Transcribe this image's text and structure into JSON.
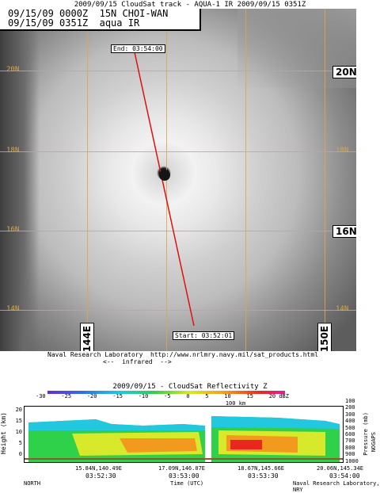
{
  "header": {
    "title": "2009/09/15 CloudSat track - AQUA-1 IR  2009/09/15 0351Z"
  },
  "banner": {
    "line1": "09/15/09 0000Z  15N CHOI-WAN",
    "line2": "09/15/09 0351Z  aqua IR"
  },
  "map": {
    "lat_labels_left": [
      "20N",
      "18N",
      "16N",
      "14N"
    ],
    "lat_badges_right": [
      "20N",
      "16N"
    ],
    "lat_labels_right": [
      "18N",
      "14N"
    ],
    "lon_badges": [
      "144E",
      "150E"
    ],
    "track_end": "End: 03:54:00",
    "track_start": "Start: 03:52:01"
  },
  "footer": {
    "credit": "Naval Research Laboratory  http://www.nrlmry.navy.mil/sat_products.html",
    "band": "<--  infrared  -->"
  },
  "profile": {
    "title": "2009/09/15 - CloudSat Reflectivity Z",
    "colorbar_ticks": [
      "-30",
      "-25",
      "-20",
      "-15",
      "-10",
      "-5",
      "0",
      "5",
      "10",
      "15",
      "20 dBZ"
    ],
    "scale_label": "100 km",
    "ylabel_left": "Height (km)",
    "yticks_left": [
      "20",
      "15",
      "10",
      "5",
      "0"
    ],
    "ylabel_right": "Pressure (mb)",
    "yticks_right": [
      "100",
      "200",
      "300",
      "400",
      "500",
      "600",
      "700",
      "800",
      "900",
      "1000"
    ],
    "right_side_label": "NOGAPS",
    "x_coords": [
      "15.84N,140.49E",
      "17.09N,146.07E",
      "18.67N,145.66E",
      "20.06N,145.34E"
    ],
    "x_times": [
      "03:52:30",
      "03:53:00",
      "03:53:30",
      "03:54:00"
    ],
    "xlabel": "Time (UTC)",
    "north_label": "NORTH",
    "credit": "Naval Research Laboratory, NRY"
  },
  "colors": {
    "grid": "#d9a84a",
    "track": "#e01010"
  }
}
